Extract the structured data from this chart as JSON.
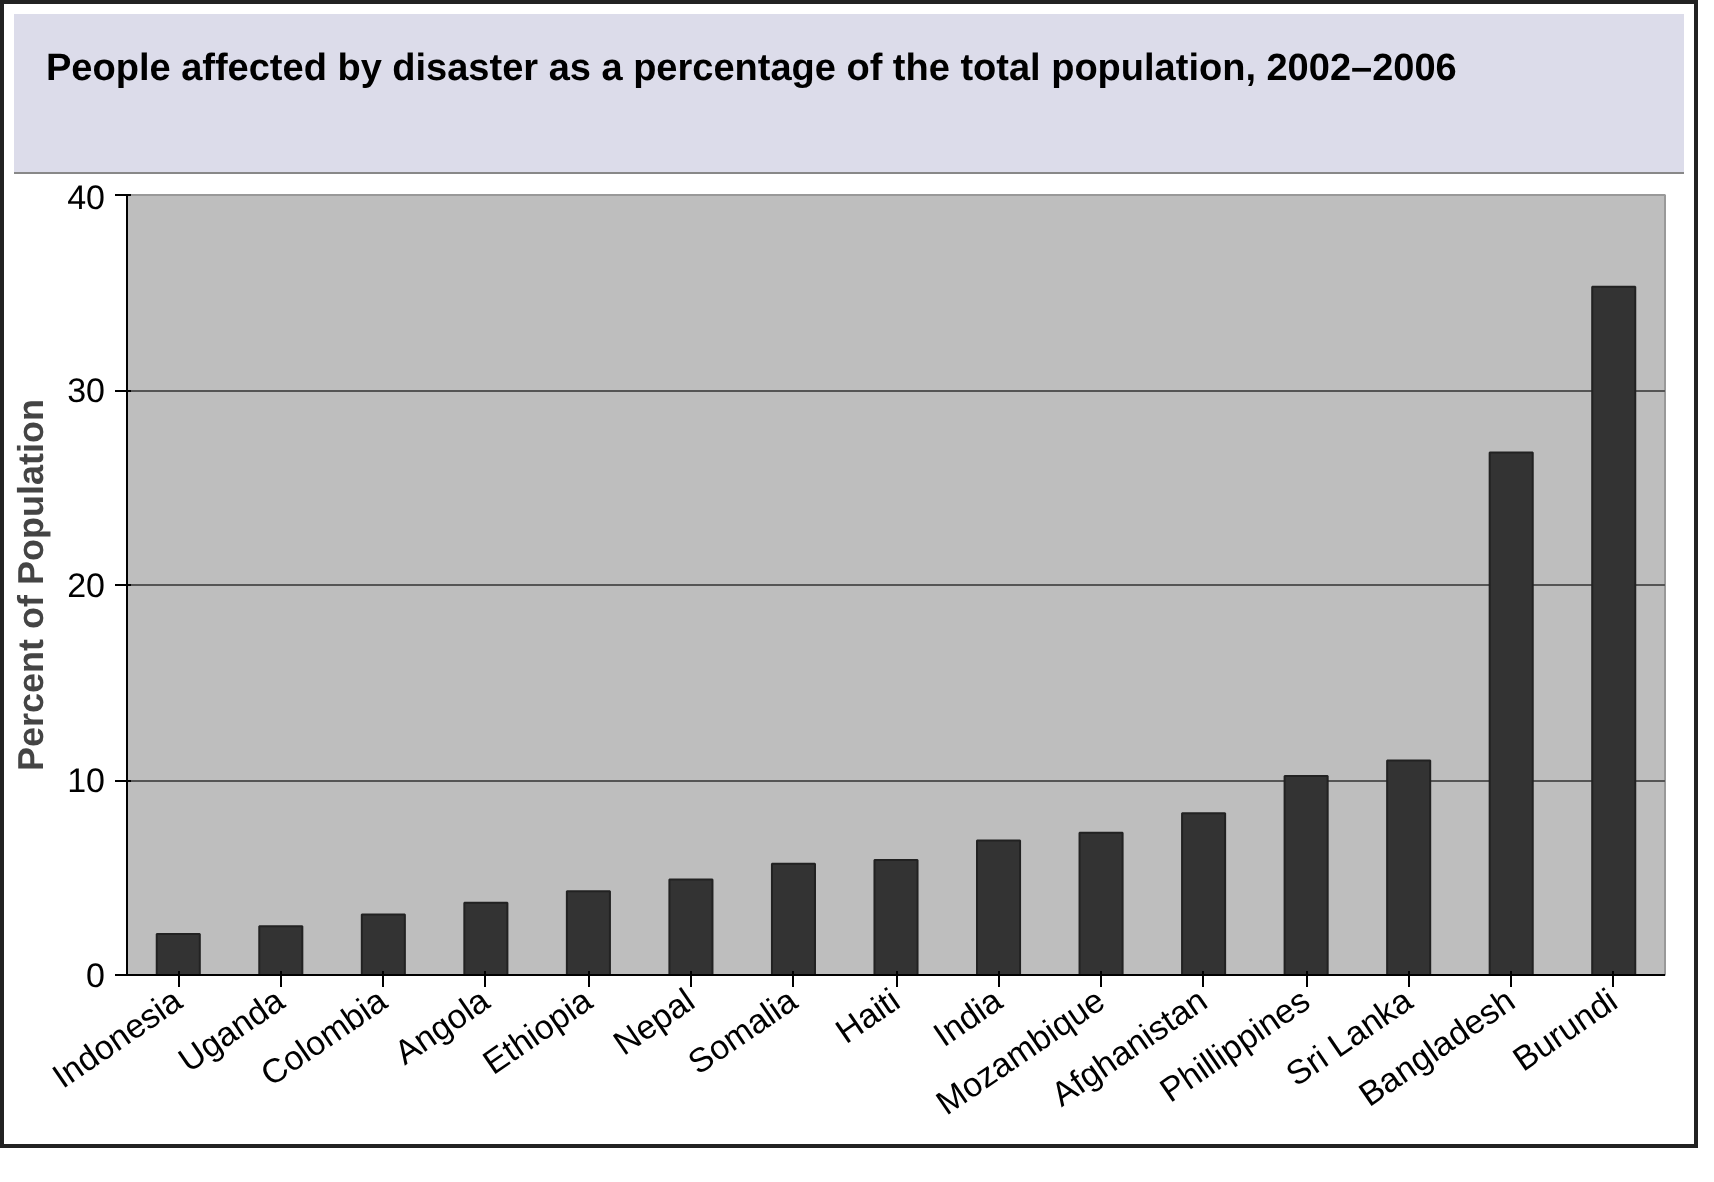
{
  "chart_data": {
    "type": "bar",
    "title": "People affected by disaster as a percentage of the total population, 2002–2006",
    "ylabel": "Percent of Population",
    "categories": [
      "Indonesia",
      "Uganda",
      "Colombia",
      "Angola",
      "Ethiopia",
      "Nepal",
      "Somalia",
      "Haiti",
      "India",
      "Mozambique",
      "Afghanistan",
      "Phillippines",
      "Sri Lanka",
      "Bangladesh",
      "Burundi"
    ],
    "values": [
      2.1,
      2.5,
      3.1,
      3.7,
      4.3,
      4.9,
      5.7,
      5.9,
      6.9,
      7.3,
      8.3,
      10.2,
      11.0,
      26.8,
      35.3
    ],
    "color": "#333333",
    "ylim": [
      0,
      40
    ],
    "yticks": [
      0,
      10,
      20,
      30,
      40
    ],
    "grid": "y"
  }
}
